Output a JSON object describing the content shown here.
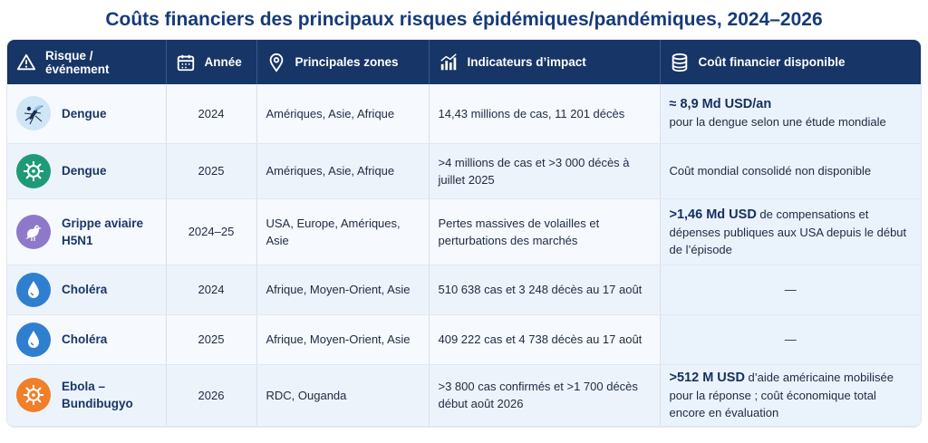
{
  "title": "Coûts financiers des principaux risques épidémiques/pandémiques,  2024–2026",
  "headers": {
    "risk": "Risque / événement",
    "year": "Année",
    "zones": "Principales zones",
    "indicators": "Indicateurs d’impact",
    "cost": "Coût financier disponible"
  },
  "header_icons": [
    "warning-icon",
    "calendar-icon",
    "map-pin-icon",
    "bar-chart-icon",
    "coins-stack-icon"
  ],
  "colors": {
    "header_bg": "#173566",
    "title": "#163a7a",
    "dengue_icon_bg": "#cfe6f6",
    "dengue2_icon_bg": "#1f9a78",
    "grippe_icon_bg": "#8e79c9",
    "cholera_icon_bg": "#2f7fd0",
    "ebola_icon_bg": "#f07f2a"
  },
  "rows": [
    {
      "risk": "Dengue",
      "icon": "mosquito-icon",
      "year": "2024",
      "zones": "Amériques, Asie, Afrique",
      "indicators": "14,43 millions de cas, 11 201 décès",
      "cost_strong": "≈ 8,9 Md USD/an",
      "cost_text": "pour la dengue selon une étude mondiale"
    },
    {
      "risk": "Dengue",
      "icon": "virus-icon",
      "year": "2025",
      "zones": "Amériques, Asie, Afrique",
      "indicators": ">4 millions de cas et >3 000 décès à juillet 2025",
      "cost_strong": "",
      "cost_text": "Coût mondial consolidé non disponible"
    },
    {
      "risk": "Grippe aviaire H5N1",
      "icon": "bird-icon",
      "year": "2024–25",
      "zones": "USA, Europe, Amériques, Asie",
      "indicators": "Pertes massives de volailles et perturbations des marchés",
      "cost_strong": ">1,46 Md USD",
      "cost_text": " de compensations et dépenses publiques aux USA depuis le début de l’épisode"
    },
    {
      "risk": "Choléra",
      "icon": "water-drop-icon",
      "year": "2024",
      "zones": "Afrique, Moyen-Orient, Asie",
      "indicators": "510 638 cas et 3 248 décès au 17 août",
      "cost_strong": "",
      "cost_text": "—"
    },
    {
      "risk": "Choléra",
      "icon": "water-drop-icon",
      "year": "2025",
      "zones": "Afrique, Moyen-Orient, Asie",
      "indicators": "409 222 cas et 4 738 décès au 17 août",
      "cost_strong": "",
      "cost_text": "—"
    },
    {
      "risk": "Ebola – Bundibugyo",
      "icon": "virus-icon",
      "year": "2026",
      "zones": "RDC, Ouganda",
      "indicators": ">3 800 cas confirmés et >1 700 décès début août 2026",
      "cost_strong": ">512 M USD",
      "cost_text": " d’aide américaine mobilisée pour la réponse ; coût économique total encore en évaluation"
    }
  ]
}
